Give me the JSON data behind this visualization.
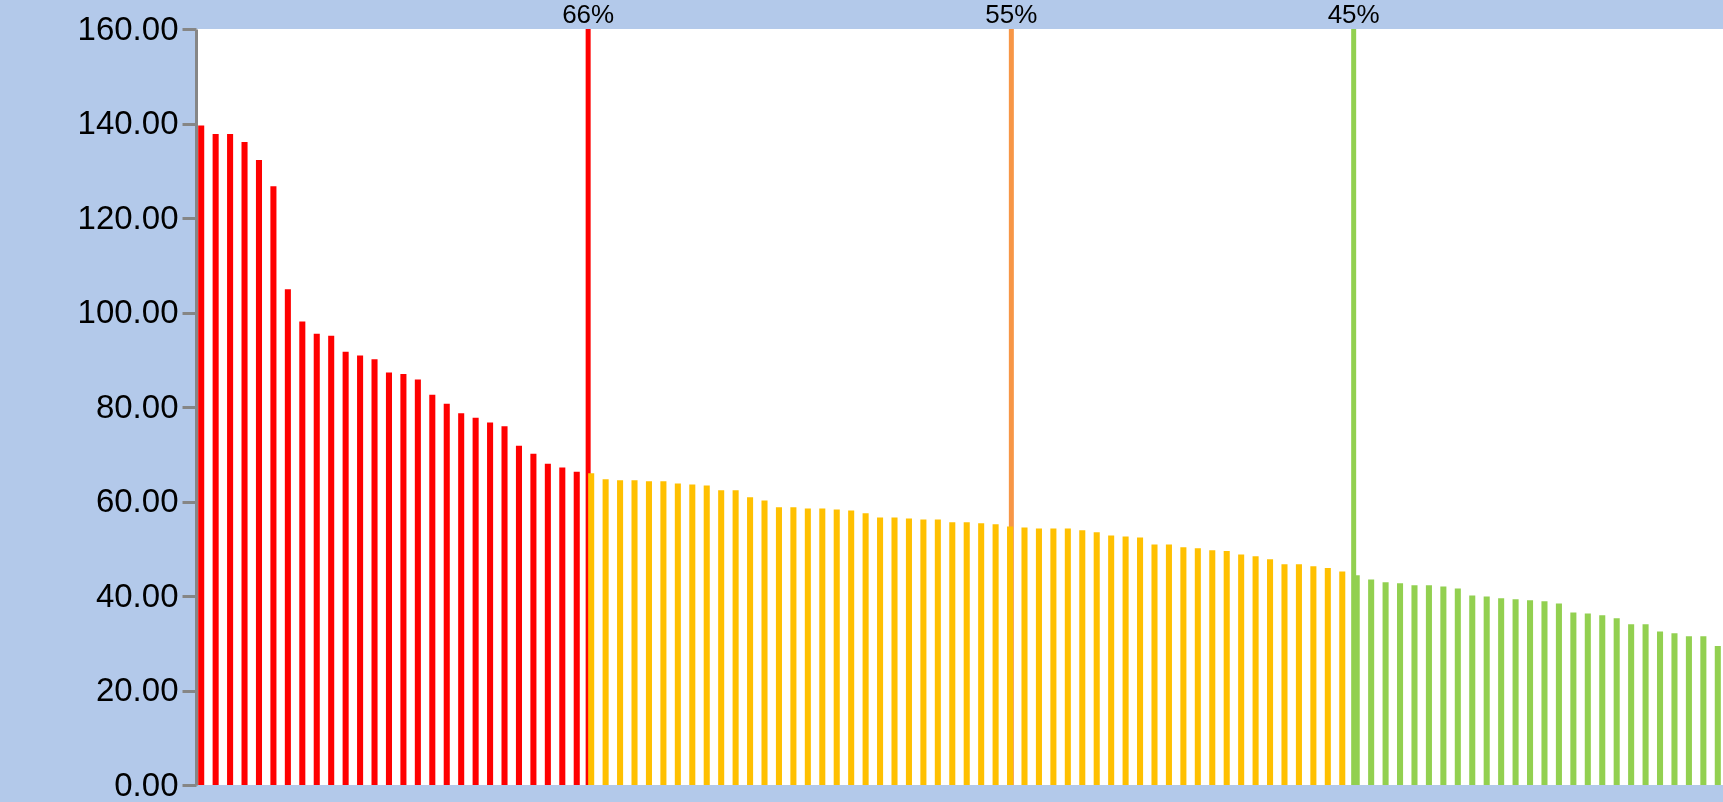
{
  "chart_data": {
    "type": "bar",
    "categories": [
      null,
      null,
      null,
      null,
      null,
      null,
      null,
      null,
      null,
      null,
      null,
      null,
      null,
      null,
      null,
      null,
      null,
      null,
      null,
      null,
      null,
      null,
      null,
      null,
      null,
      null,
      null,
      null,
      null,
      null,
      null,
      null,
      null,
      null,
      null,
      null,
      null,
      null,
      null,
      null,
      null,
      null,
      null,
      null,
      null,
      null,
      null,
      null,
      null,
      null,
      null,
      null,
      null,
      null,
      null,
      null,
      null,
      null,
      null,
      null,
      null,
      null,
      null,
      null,
      null,
      null,
      null,
      null,
      null,
      null,
      null,
      null,
      null,
      null,
      null,
      null,
      null,
      null,
      null,
      null,
      null,
      null,
      null,
      null,
      null,
      null,
      null,
      null,
      null,
      null,
      null,
      null,
      null,
      null,
      null,
      null,
      null,
      null,
      null,
      null,
      null,
      null,
      null,
      null,
      null,
      null
    ],
    "ylim": [
      0,
      160
    ],
    "yticks": [
      {
        "value": 0,
        "label": "0.00"
      },
      {
        "value": 20,
        "label": "20.00"
      },
      {
        "value": 40,
        "label": "40.00"
      },
      {
        "value": 60,
        "label": "60.00"
      },
      {
        "value": 80,
        "label": "80.00"
      },
      {
        "value": 100,
        "label": "100.00"
      },
      {
        "value": 120,
        "label": "120.00"
      },
      {
        "value": 140,
        "label": "140.00"
      },
      {
        "value": 160,
        "label": "160.00"
      }
    ],
    "tick_labels": "y",
    "values": [
      139.6,
      137.8,
      137.8,
      136.1,
      132.3,
      126.7,
      104.9,
      98.1,
      95.5,
      95.1,
      91.7,
      90.9,
      90.1,
      87.3,
      87.0,
      85.8,
      82.6,
      80.7,
      78.7,
      77.7,
      76.7,
      75.9,
      71.8,
      70.1,
      68.0,
      67.2,
      66.3,
      66.0,
      64.7,
      64.5,
      64.5,
      64.3,
      64.3,
      63.8,
      63.6,
      63.4,
      62.4,
      62.4,
      60.9,
      60.2,
      58.8,
      58.8,
      58.5,
      58.5,
      58.3,
      58.1,
      57.5,
      56.6,
      56.6,
      56.4,
      56.2,
      56.2,
      55.6,
      55.6,
      55.4,
      55.2,
      54.7,
      54.5,
      54.3,
      54.3,
      54.3,
      53.9,
      53.5,
      52.8,
      52.6,
      52.4,
      50.9,
      50.9,
      50.3,
      50.1,
      49.7,
      49.5,
      48.8,
      48.4,
      47.8,
      46.7,
      46.7,
      46.3,
      45.9,
      45.2,
      44.4,
      43.5,
      42.9,
      42.7,
      42.3,
      42.3,
      42.0,
      41.6,
      40.1,
      39.9,
      39.5,
      39.3,
      39.1,
      38.9,
      38.4,
      36.5,
      36.3,
      35.9,
      35.3,
      34.0,
      34.0,
      32.5,
      32.1,
      31.5,
      31.5,
      29.4
    ],
    "colors": [
      "#ff0000",
      "#ff0000",
      "#ff0000",
      "#ff0000",
      "#ff0000",
      "#ff0000",
      "#ff0000",
      "#ff0000",
      "#ff0000",
      "#ff0000",
      "#ff0000",
      "#ff0000",
      "#ff0000",
      "#ff0000",
      "#ff0000",
      "#ff0000",
      "#ff0000",
      "#ff0000",
      "#ff0000",
      "#ff0000",
      "#ff0000",
      "#ff0000",
      "#ff0000",
      "#ff0000",
      "#ff0000",
      "#ff0000",
      "#ff0000",
      "#ffc000",
      "#ffc000",
      "#ffc000",
      "#ffc000",
      "#ffc000",
      "#ffc000",
      "#ffc000",
      "#ffc000",
      "#ffc000",
      "#ffc000",
      "#ffc000",
      "#ffc000",
      "#ffc000",
      "#ffc000",
      "#ffc000",
      "#ffc000",
      "#ffc000",
      "#ffc000",
      "#ffc000",
      "#ffc000",
      "#ffc000",
      "#ffc000",
      "#ffc000",
      "#ffc000",
      "#ffc000",
      "#ffc000",
      "#ffc000",
      "#ffc000",
      "#ffc000",
      "#ffc000",
      "#ffc000",
      "#ffc000",
      "#ffc000",
      "#ffc000",
      "#ffc000",
      "#ffc000",
      "#ffc000",
      "#ffc000",
      "#ffc000",
      "#ffc000",
      "#ffc000",
      "#ffc000",
      "#ffc000",
      "#ffc000",
      "#ffc000",
      "#ffc000",
      "#ffc000",
      "#ffc000",
      "#ffc000",
      "#ffc000",
      "#ffc000",
      "#ffc000",
      "#ffc000",
      "#92d050",
      "#92d050",
      "#92d050",
      "#92d050",
      "#92d050",
      "#92d050",
      "#92d050",
      "#92d050",
      "#92d050",
      "#92d050",
      "#92d050",
      "#92d050",
      "#92d050",
      "#92d050",
      "#92d050",
      "#92d050",
      "#92d050",
      "#92d050",
      "#92d050",
      "#92d050",
      "#92d050",
      "#92d050",
      "#92d050",
      "#92d050",
      "#92d050",
      "#92d050"
    ],
    "annotations": [
      "66%",
      "55%",
      "45%"
    ]
  }
}
